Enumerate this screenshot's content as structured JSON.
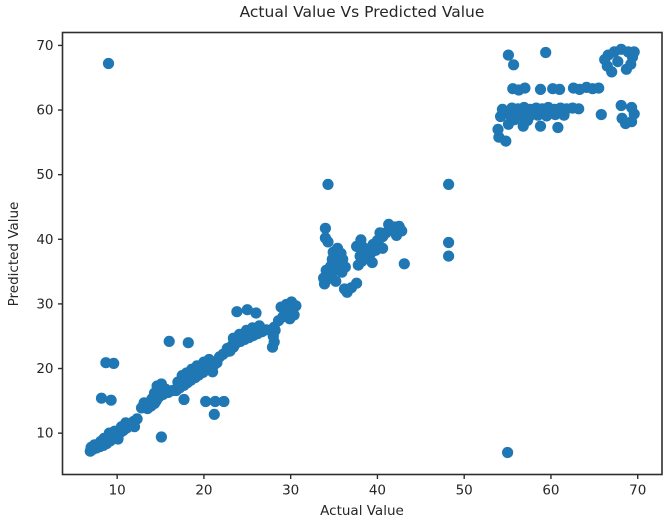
{
  "figure": {
    "title": "Actual Value Vs Predicted Value",
    "xlabel": "Actual Value",
    "ylabel": "Predicted Value"
  },
  "chart_data": {
    "type": "scatter",
    "title": "Actual Value Vs Predicted Value",
    "xlabel": "Actual Value",
    "ylabel": "Predicted Value",
    "xlim": [
      3.7,
      72.8
    ],
    "ylim": [
      3.6,
      72.0
    ],
    "xticks": [
      10,
      20,
      30,
      40,
      50,
      60,
      70
    ],
    "yticks": [
      10,
      20,
      30,
      40,
      50,
      60,
      70
    ],
    "grid": false,
    "legend": null,
    "marker_color": "#1f77b4",
    "marker_radius_px": 5.6,
    "axis_color": "#2e2e2e",
    "points": [
      [
        6.9,
        7.2
      ],
      [
        7.2,
        7.5
      ],
      [
        7.6,
        7.7
      ],
      [
        8.0,
        7.9
      ],
      [
        8.4,
        8.1
      ],
      [
        8.8,
        8.4
      ],
      [
        9.2,
        8.8
      ],
      [
        9.5,
        9.2
      ],
      [
        9.9,
        9.6
      ],
      [
        10.3,
        10.0
      ],
      [
        10.7,
        10.4
      ],
      [
        11.1,
        10.8
      ],
      [
        11.5,
        11.3
      ],
      [
        11.9,
        11.8
      ],
      [
        12.3,
        12.2
      ],
      [
        7.4,
        8.2
      ],
      [
        8.5,
        9.2
      ],
      [
        9.1,
        10.0
      ],
      [
        10.1,
        9.1
      ],
      [
        11.0,
        11.6
      ],
      [
        12.0,
        11.0
      ],
      [
        7.0,
        7.8
      ],
      [
        8.1,
        8.7
      ],
      [
        9.7,
        10.3
      ],
      [
        10.5,
        11.0
      ],
      [
        15.1,
        9.4
      ],
      [
        21.2,
        12.9
      ],
      [
        8.2,
        15.4
      ],
      [
        9.3,
        15.1
      ],
      [
        8.7,
        20.9
      ],
      [
        9.6,
        20.8
      ],
      [
        16.0,
        24.2
      ],
      [
        18.2,
        24.0
      ],
      [
        13.5,
        13.8
      ],
      [
        13.9,
        14.2
      ],
      [
        14.3,
        14.6
      ],
      [
        14.0,
        15.3
      ],
      [
        14.5,
        15.0
      ],
      [
        14.8,
        15.6
      ],
      [
        14.3,
        16.2
      ],
      [
        14.9,
        16.5
      ],
      [
        15.3,
        16.0
      ],
      [
        15.6,
        16.8
      ],
      [
        14.6,
        17.3
      ],
      [
        15.1,
        17.6
      ],
      [
        13.1,
        14.7
      ],
      [
        12.8,
        13.9
      ],
      [
        15.9,
        16.3
      ],
      [
        16.4,
        16.6
      ],
      [
        16.8,
        16.6
      ],
      [
        17.2,
        17.0
      ],
      [
        17.7,
        17.4
      ],
      [
        18.1,
        17.8
      ],
      [
        18.5,
        18.2
      ],
      [
        19.0,
        18.6
      ],
      [
        19.4,
        19.0
      ],
      [
        19.9,
        19.4
      ],
      [
        20.3,
        19.8
      ],
      [
        20.8,
        20.2
      ],
      [
        21.2,
        20.6
      ],
      [
        18.0,
        19.3
      ],
      [
        18.6,
        19.9
      ],
      [
        19.2,
        20.4
      ],
      [
        17.5,
        18.9
      ],
      [
        20.0,
        21.0
      ],
      [
        20.6,
        21.4
      ],
      [
        17.0,
        17.9
      ],
      [
        19.6,
        20.1
      ],
      [
        21.0,
        19.5
      ],
      [
        21.5,
        20.9
      ],
      [
        17.7,
        15.2
      ],
      [
        20.2,
        14.9
      ],
      [
        21.3,
        14.9
      ],
      [
        22.3,
        14.9
      ],
      [
        21.8,
        21.8
      ],
      [
        22.2,
        22.2
      ],
      [
        22.6,
        22.6
      ],
      [
        23.0,
        23.0
      ],
      [
        23.4,
        23.3
      ],
      [
        22.7,
        23.1
      ],
      [
        23.2,
        23.5
      ],
      [
        23.7,
        23.9
      ],
      [
        24.2,
        24.2
      ],
      [
        24.7,
        24.5
      ],
      [
        25.2,
        24.8
      ],
      [
        25.7,
        25.1
      ],
      [
        26.2,
        25.4
      ],
      [
        26.7,
        25.7
      ],
      [
        27.2,
        26.0
      ],
      [
        23.4,
        24.7
      ],
      [
        24.1,
        25.3
      ],
      [
        24.9,
        25.9
      ],
      [
        25.6,
        26.3
      ],
      [
        26.4,
        26.6
      ],
      [
        23.0,
        22.7
      ],
      [
        27.9,
        23.3
      ],
      [
        28.1,
        24.1
      ],
      [
        28.0,
        25.0
      ],
      [
        28.2,
        25.9
      ],
      [
        28.1,
        26.4
      ],
      [
        23.8,
        28.8
      ],
      [
        25.0,
        29.1
      ],
      [
        26.0,
        28.6
      ],
      [
        28.6,
        27.4
      ],
      [
        29.1,
        28.0
      ],
      [
        29.6,
        28.5
      ],
      [
        30.1,
        29.0
      ],
      [
        28.9,
        29.5
      ],
      [
        29.5,
        29.9
      ],
      [
        30.1,
        30.3
      ],
      [
        30.6,
        29.7
      ],
      [
        30.4,
        28.3
      ],
      [
        29.9,
        27.7
      ],
      [
        33.9,
        33.1
      ],
      [
        34.2,
        33.8
      ],
      [
        34.5,
        34.5
      ],
      [
        34.1,
        35.2
      ],
      [
        34.6,
        35.8
      ],
      [
        35.0,
        35.1
      ],
      [
        35.3,
        36.3
      ],
      [
        34.8,
        36.9
      ],
      [
        35.5,
        37.2
      ],
      [
        34.9,
        38.0
      ],
      [
        35.4,
        38.6
      ],
      [
        35.8,
        37.8
      ],
      [
        36.0,
        36.9
      ],
      [
        36.3,
        35.7
      ],
      [
        35.9,
        34.9
      ],
      [
        34.3,
        39.6
      ],
      [
        34.0,
        40.2
      ],
      [
        33.8,
        34.0
      ],
      [
        35.2,
        33.5
      ],
      [
        36.5,
        31.8
      ],
      [
        37.0,
        32.5
      ],
      [
        37.6,
        33.2
      ],
      [
        36.2,
        32.3
      ],
      [
        34.0,
        41.7
      ],
      [
        34.3,
        48.5
      ],
      [
        37.8,
        36.0
      ],
      [
        38.2,
        36.6
      ],
      [
        38.0,
        37.4
      ],
      [
        38.5,
        38.0
      ],
      [
        38.3,
        38.8
      ],
      [
        38.9,
        37.0
      ],
      [
        39.2,
        37.8
      ],
      [
        39.0,
        38.5
      ],
      [
        39.5,
        39.2
      ],
      [
        39.8,
        38.3
      ],
      [
        40.2,
        39.0
      ],
      [
        40.0,
        39.8
      ],
      [
        38.1,
        39.9
      ],
      [
        37.6,
        38.9
      ],
      [
        39.4,
        36.4
      ],
      [
        40.6,
        38.6
      ],
      [
        40.6,
        40.4
      ],
      [
        41.0,
        41.0
      ],
      [
        41.5,
        41.5
      ],
      [
        42.0,
        41.9
      ],
      [
        42.5,
        42.0
      ],
      [
        42.8,
        41.3
      ],
      [
        41.3,
        42.3
      ],
      [
        40.3,
        41.0
      ],
      [
        42.2,
        40.6
      ],
      [
        43.1,
        36.2
      ],
      [
        48.2,
        48.5
      ],
      [
        48.2,
        39.5
      ],
      [
        48.2,
        37.4
      ],
      [
        9.0,
        67.2
      ],
      [
        55.0,
        7.0
      ],
      [
        54.0,
        55.8
      ],
      [
        54.8,
        55.2
      ],
      [
        53.9,
        57.0
      ],
      [
        55.1,
        57.8
      ],
      [
        56.8,
        57.5
      ],
      [
        58.8,
        57.5
      ],
      [
        60.8,
        57.3
      ],
      [
        55.8,
        58.5
      ],
      [
        57.3,
        58.4
      ],
      [
        55.3,
        59.2
      ],
      [
        56.5,
        59.1
      ],
      [
        57.5,
        59.0
      ],
      [
        58.5,
        59.2
      ],
      [
        59.5,
        59.1
      ],
      [
        60.5,
        59.3
      ],
      [
        61.5,
        59.2
      ],
      [
        54.2,
        59.0
      ],
      [
        54.4,
        60.1
      ],
      [
        55.5,
        60.3
      ],
      [
        56.2,
        60.2
      ],
      [
        56.9,
        60.4
      ],
      [
        57.6,
        60.1
      ],
      [
        58.3,
        60.3
      ],
      [
        59.0,
        60.2
      ],
      [
        59.7,
        60.4
      ],
      [
        60.4,
        60.1
      ],
      [
        61.1,
        60.3
      ],
      [
        61.8,
        60.2
      ],
      [
        62.5,
        60.3
      ],
      [
        63.2,
        60.2
      ],
      [
        65.8,
        59.3
      ],
      [
        68.1,
        60.7
      ],
      [
        69.3,
        60.4
      ],
      [
        68.2,
        58.7
      ],
      [
        69.3,
        58.2
      ],
      [
        69.6,
        59.4
      ],
      [
        68.6,
        57.9
      ],
      [
        55.6,
        63.3
      ],
      [
        56.3,
        63.1
      ],
      [
        57.0,
        63.4
      ],
      [
        58.8,
        63.2
      ],
      [
        60.2,
        63.3
      ],
      [
        61.0,
        63.2
      ],
      [
        62.6,
        63.4
      ],
      [
        63.3,
        63.2
      ],
      [
        64.1,
        63.5
      ],
      [
        64.8,
        63.3
      ],
      [
        65.5,
        63.4
      ],
      [
        55.1,
        68.5
      ],
      [
        55.7,
        67.0
      ],
      [
        59.4,
        68.9
      ],
      [
        66.6,
        68.5
      ],
      [
        67.3,
        69.0
      ],
      [
        68.1,
        69.4
      ],
      [
        68.9,
        69.0
      ],
      [
        69.4,
        68.2
      ],
      [
        67.7,
        67.5
      ],
      [
        66.5,
        66.8
      ],
      [
        68.7,
        66.3
      ],
      [
        69.2,
        67.1
      ],
      [
        67.0,
        65.9
      ],
      [
        66.2,
        67.8
      ],
      [
        69.6,
        69.0
      ]
    ]
  }
}
